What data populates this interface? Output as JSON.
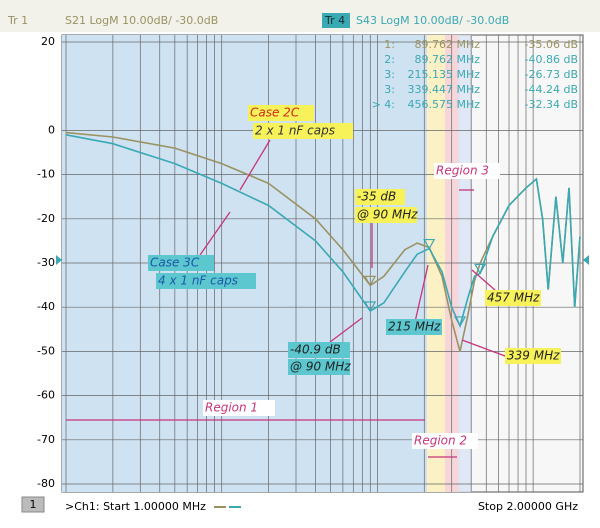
{
  "chart_data": {
    "type": "line",
    "trace_labels": [
      "Tr 1",
      "Tr 4"
    ],
    "x": [
      1,
      2,
      5,
      10,
      20,
      40,
      60,
      90,
      110,
      150,
      180,
      215,
      260,
      300,
      339,
      380,
      420,
      457,
      550,
      700,
      900,
      1050,
      1150,
      1250,
      1400,
      1550,
      1700,
      1850,
      2000
    ],
    "series": [
      {
        "name": "S21 LogM 10.00dB/ -30.0dB",
        "color": "#9a9262",
        "values": [
          -0.5,
          -1.5,
          -4,
          -7.5,
          -12,
          -20,
          -27,
          -35.06,
          -33,
          -27,
          -25.5,
          -26.5,
          -33,
          -43,
          -50,
          -42,
          -34,
          -30,
          -24,
          -17,
          -13,
          -11,
          -20,
          -36,
          -15,
          -30,
          -13,
          -40,
          -24
        ]
      },
      {
        "name": "S43 LogM 10.00dB/ -30.0dB",
        "color": "#3aa9b4",
        "values": [
          -1,
          -3,
          -7.5,
          -12,
          -17,
          -25,
          -32,
          -40.86,
          -39,
          -32,
          -28,
          -26.73,
          -32,
          -40,
          -44.24,
          -38,
          -33,
          -32.34,
          -24,
          -17,
          -13,
          -11,
          -20,
          -36,
          -15,
          -30,
          -13,
          -40,
          -24
        ]
      }
    ],
    "xlim": [
      1,
      2000
    ],
    "xscale": "log",
    "xticks": [
      1,
      2,
      3,
      4,
      5,
      6,
      7,
      8,
      9,
      10,
      20,
      30,
      40,
      50,
      60,
      70,
      80,
      90,
      100,
      200,
      300,
      400,
      500,
      600,
      700,
      800,
      900,
      1000,
      2000
    ],
    "ylim": [
      -80,
      20
    ],
    "yticks": [
      20,
      0,
      -10,
      -20,
      -30,
      -40,
      -50,
      -60,
      -70,
      -80
    ],
    "grid": true,
    "markers": [
      {
        "label": "1:",
        "x": {
          "value": 89.762,
          "label": "89.762 MHz"
        },
        "y": {
          "value": -35.06,
          "label": "-35.06 dB"
        },
        "series": 0
      },
      {
        "label": "2:",
        "x": {
          "value": 89.762,
          "label": "89.762 MHz"
        },
        "y": {
          "value": -40.86,
          "label": "-40.86 dB"
        },
        "series": 1
      },
      {
        "label": "3:",
        "x": {
          "value": 215.135,
          "label": "215.135 MHz"
        },
        "y": {
          "value": -26.73,
          "label": "-26.73 dB"
        },
        "series": 1
      },
      {
        "label": "3:",
        "x": {
          "value": 339.447,
          "label": "339.447 MHz"
        },
        "y": {
          "value": -44.24,
          "label": "-44.24 dB"
        },
        "series": 1
      },
      {
        "label": "> 4:",
        "x": {
          "value": 456.575,
          "label": "456.575 MHz"
        },
        "y": {
          "value": -32.34,
          "label": "-32.34 dB"
        },
        "series": 1
      }
    ],
    "annotations": [
      "Case 2C",
      "2 x 1 nF caps",
      "Case 3C",
      "4 x 1 nF caps",
      "-35 dB",
      "@ 90 MHz",
      "-40.9 dB",
      "@ 90 MHz",
      "215 MHz",
      "457 MHz",
      "339 MHz",
      "Region 1",
      "Region 2",
      "Region 3"
    ],
    "channel_number": "1",
    "footer_start": ">Ch1: Start  1.00000 MHz",
    "footer_stop": "Stop  2.00000 GHz"
  }
}
